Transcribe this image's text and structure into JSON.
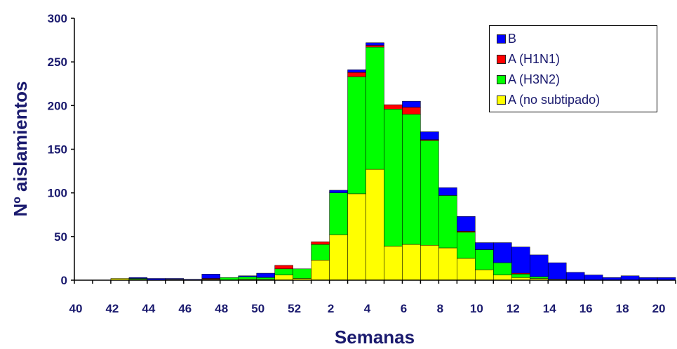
{
  "chart_data": {
    "type": "bar",
    "stacked": true,
    "xlabel": "Semanas",
    "ylabel": "Nº aislamientos",
    "ylim": [
      0,
      300
    ],
    "yticks": [
      0,
      50,
      100,
      150,
      200,
      250,
      300
    ],
    "categories": [
      "40",
      "41",
      "42",
      "43",
      "44",
      "45",
      "46",
      "47",
      "48",
      "49",
      "50",
      "51",
      "52",
      "1",
      "2",
      "3",
      "4",
      "5",
      "6",
      "7",
      "8",
      "9",
      "10",
      "11",
      "12",
      "13",
      "14",
      "15",
      "16",
      "17",
      "18",
      "19",
      "20"
    ],
    "tick_labels": [
      "40",
      "42",
      "44",
      "46",
      "48",
      "50",
      "52",
      "2",
      "4",
      "6",
      "8",
      "10",
      "12",
      "14",
      "16",
      "18",
      "20"
    ],
    "legend_position": "top-right",
    "series": [
      {
        "name": "A (no subtipado)",
        "color": "#ffff00",
        "values": [
          0,
          0,
          2,
          1,
          0,
          1,
          0,
          0,
          0,
          1,
          1,
          6,
          2,
          23,
          52,
          99,
          127,
          39,
          41,
          40,
          37,
          25,
          12,
          6,
          3,
          2,
          1,
          0,
          0,
          0,
          0,
          0,
          0
        ]
      },
      {
        "name": "A (H3N2)",
        "color": "#00ff00",
        "values": [
          0,
          0,
          0,
          1,
          0,
          0,
          0,
          1,
          3,
          3,
          2,
          7,
          11,
          18,
          48,
          134,
          140,
          157,
          149,
          120,
          60,
          30,
          23,
          14,
          4,
          2,
          0,
          0,
          0,
          0,
          0,
          0,
          0
        ]
      },
      {
        "name": "A (H1N1)",
        "color": "#ff0000",
        "values": [
          0,
          0,
          0,
          0,
          0,
          0,
          0,
          1,
          0,
          0,
          0,
          4,
          0,
          3,
          0,
          5,
          2,
          5,
          8,
          1,
          0,
          1,
          0,
          0,
          1,
          0,
          0,
          0,
          0,
          0,
          0,
          0,
          0
        ]
      },
      {
        "name": "B",
        "color": "#0000ff",
        "values": [
          0,
          0,
          0,
          1,
          2,
          1,
          1,
          5,
          0,
          1,
          5,
          0,
          0,
          0,
          3,
          3,
          3,
          0,
          7,
          9,
          9,
          17,
          8,
          23,
          30,
          25,
          19,
          9,
          6,
          3,
          5,
          3,
          3
        ]
      }
    ]
  },
  "legend": [
    {
      "label": "B",
      "color": "#0000ff"
    },
    {
      "label": "A (H1N1)",
      "color": "#ff0000"
    },
    {
      "label": "A (H3N2)",
      "color": "#00ff00"
    },
    {
      "label": "A (no subtipado)",
      "color": "#ffff00"
    }
  ]
}
